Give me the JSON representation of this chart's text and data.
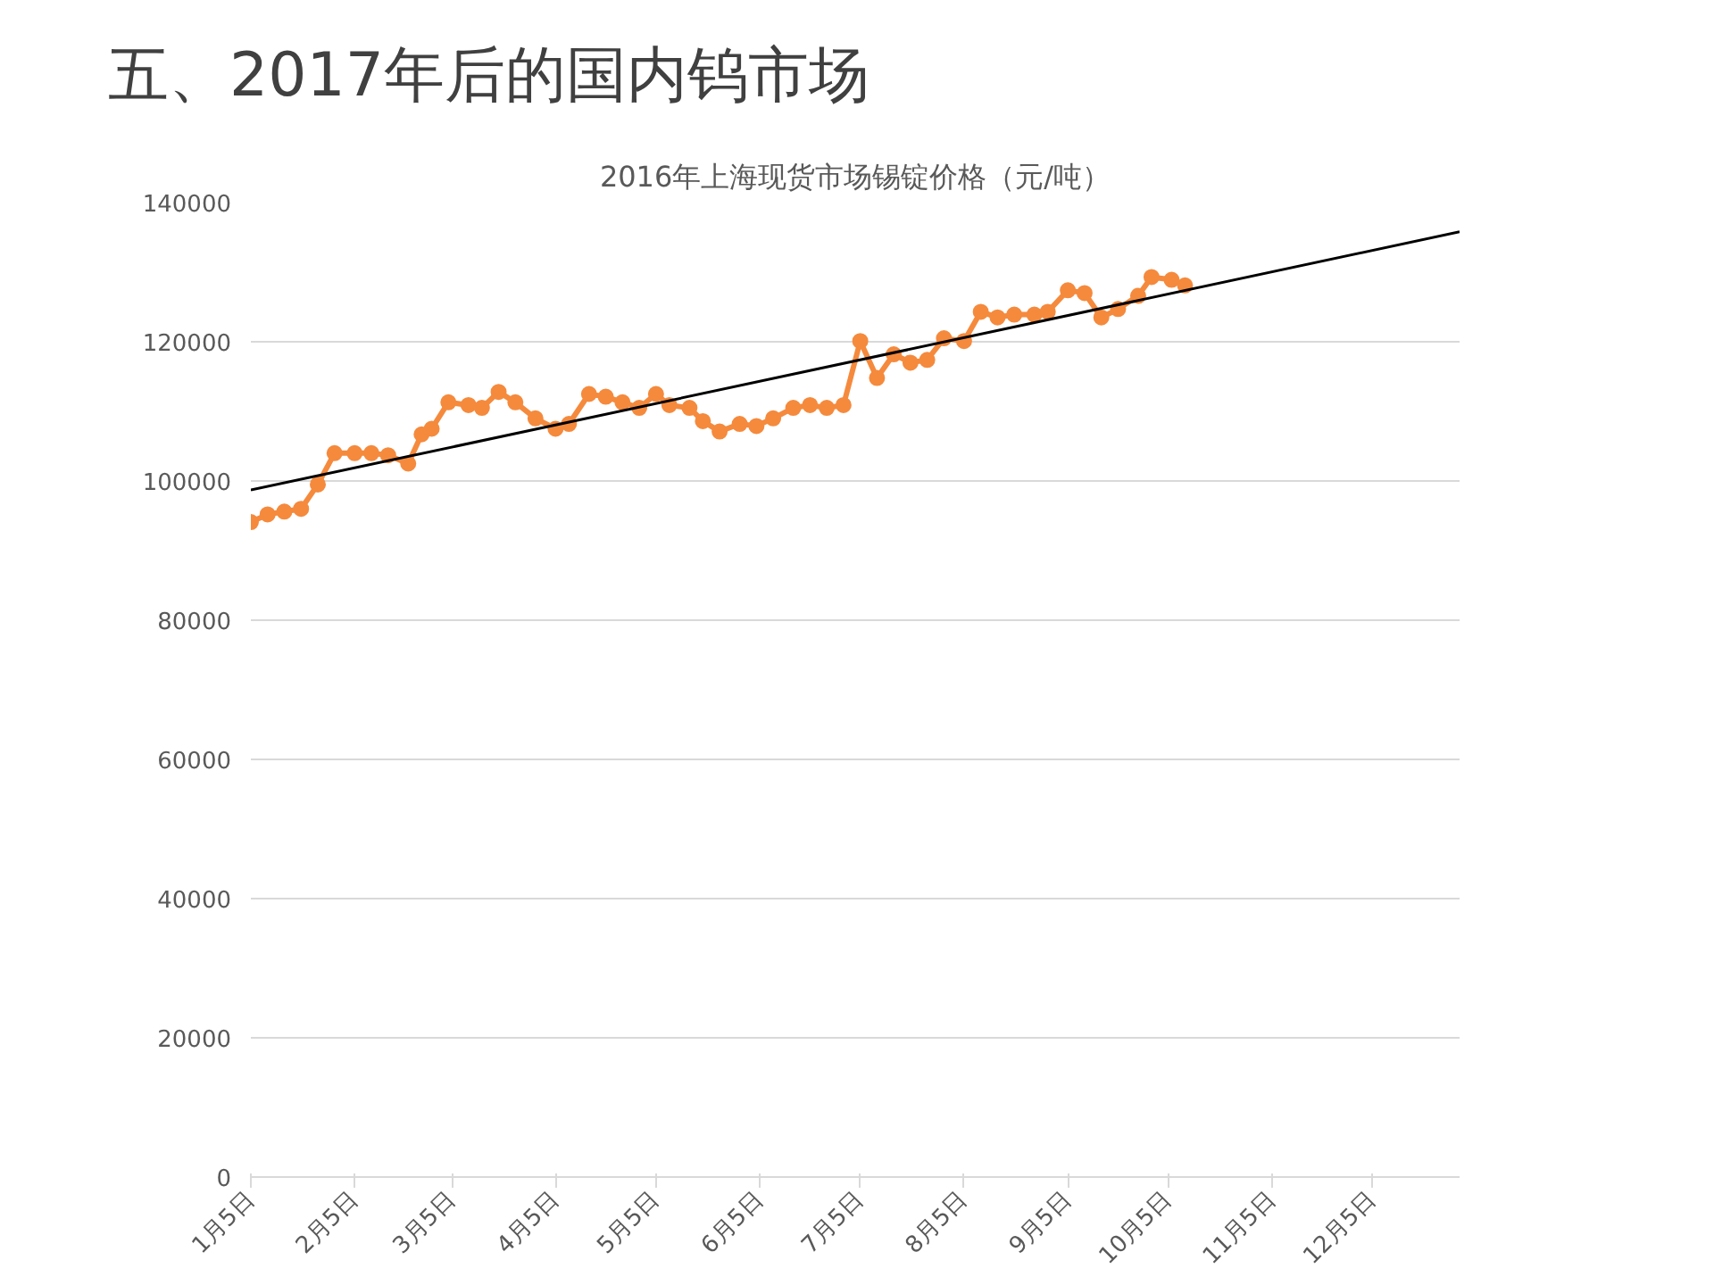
{
  "chart_data": {
    "type": "line",
    "title": "五、2017年后的国内钨市场",
    "subtitle": "2016年上海现货市场锡锭价格（元/吨）",
    "x": [
      "2016-01-05",
      "2016-01-10",
      "2016-01-15",
      "2016-01-20",
      "2016-01-25",
      "2016-01-30",
      "2016-02-05",
      "2016-02-10",
      "2016-02-15",
      "2016-02-21",
      "2016-02-25",
      "2016-02-28",
      "2016-03-04",
      "2016-03-10",
      "2016-03-14",
      "2016-03-19",
      "2016-03-24",
      "2016-03-30",
      "2016-04-05",
      "2016-04-09",
      "2016-04-15",
      "2016-04-20",
      "2016-04-25",
      "2016-04-30",
      "2016-05-05",
      "2016-05-09",
      "2016-05-15",
      "2016-05-19",
      "2016-05-24",
      "2016-05-30",
      "2016-06-04",
      "2016-06-09",
      "2016-06-15",
      "2016-06-20",
      "2016-06-25",
      "2016-06-30",
      "2016-07-05",
      "2016-07-10",
      "2016-07-15",
      "2016-07-20",
      "2016-07-25",
      "2016-07-30",
      "2016-08-05",
      "2016-08-10",
      "2016-08-15",
      "2016-08-20",
      "2016-08-26",
      "2016-08-30",
      "2016-09-05",
      "2016-09-10",
      "2016-09-15",
      "2016-09-20",
      "2016-09-26",
      "2016-09-30",
      "2016-10-06",
      "2016-10-10"
    ],
    "series": [
      {
        "color": "#f58a3d",
        "marker": "circle",
        "values": [
          94100,
          95200,
          95600,
          96000,
          99500,
          104000,
          104000,
          104000,
          103700,
          102500,
          106700,
          107500,
          111300,
          110900,
          110500,
          112800,
          111300,
          109000,
          107500,
          108200,
          112500,
          112100,
          111300,
          110500,
          112500,
          110900,
          110500,
          108600,
          107100,
          108200,
          107900,
          109000,
          110500,
          110900,
          110500,
          110900,
          120100,
          114800,
          118200,
          117000,
          117400,
          120500,
          120100,
          124300,
          123500,
          123900,
          123900,
          124300,
          127400,
          127000,
          123500,
          124700,
          126600,
          129300,
          128900,
          128100
        ]
      },
      {
        "color": "#000000",
        "marker": "none",
        "x": [
          "2016-01-05",
          "2016-12-31"
        ],
        "values": [
          98700,
          135800
        ]
      }
    ],
    "xlim": [
      "2016-01-05",
      "2016-12-31"
    ],
    "xticks": [
      {
        "value": "2016-01-05",
        "label": "1月5日"
      },
      {
        "value": "2016-02-05",
        "label": "2月5日"
      },
      {
        "value": "2016-03-05",
        "label": "3月5日"
      },
      {
        "value": "2016-04-05",
        "label": "4月5日"
      },
      {
        "value": "2016-05-05",
        "label": "5月5日"
      },
      {
        "value": "2016-06-05",
        "label": "6月5日"
      },
      {
        "value": "2016-07-05",
        "label": "7月5日"
      },
      {
        "value": "2016-08-05",
        "label": "8月5日"
      },
      {
        "value": "2016-09-05",
        "label": "9月5日"
      },
      {
        "value": "2016-10-05",
        "label": "10月5日"
      },
      {
        "value": "2016-11-05",
        "label": "11月5日"
      },
      {
        "value": "2016-12-05",
        "label": "12月5日"
      }
    ],
    "ylim": [
      0,
      140000
    ],
    "yticks": [
      0,
      20000,
      40000,
      60000,
      80000,
      100000,
      120000,
      140000
    ],
    "grid": "y"
  }
}
